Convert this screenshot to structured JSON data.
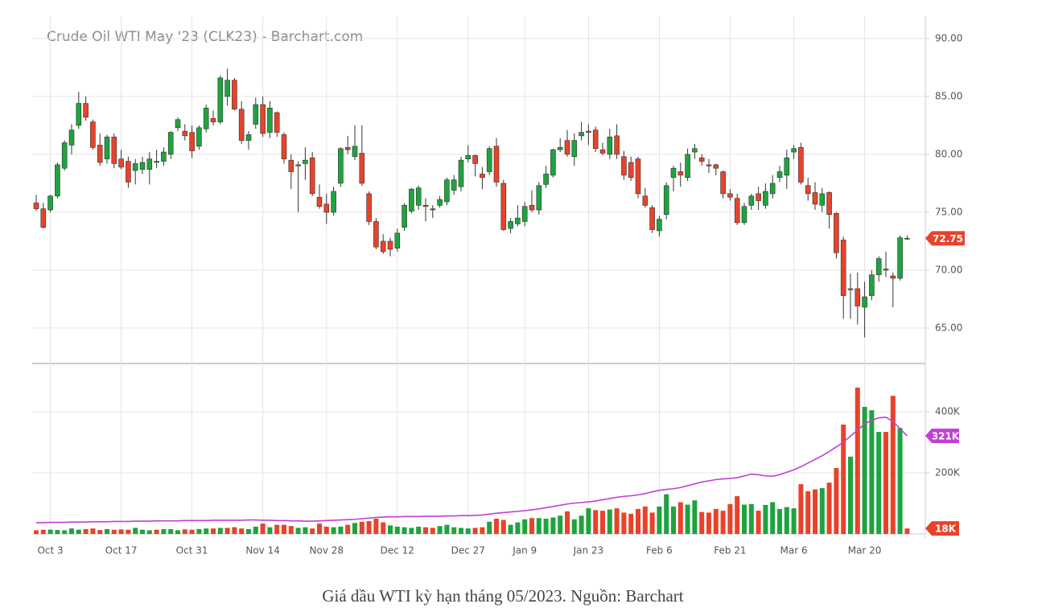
{
  "chart_data": [
    {
      "type": "candlestick",
      "title": "Crude Oil WTI May '23 (CLK23) - Barchart.com",
      "categories": [
        null,
        null,
        "Oct 3",
        null,
        null,
        null,
        null,
        null,
        null,
        null,
        null,
        null,
        "Oct 17",
        null,
        null,
        null,
        null,
        null,
        null,
        null,
        null,
        null,
        "Oct 31",
        null,
        null,
        null,
        null,
        null,
        null,
        null,
        null,
        null,
        "Nov 14",
        null,
        null,
        null,
        null,
        null,
        null,
        null,
        null,
        "Nov 28",
        null,
        null,
        null,
        null,
        null,
        null,
        null,
        null,
        null,
        "Dec 12",
        null,
        null,
        null,
        null,
        null,
        null,
        null,
        null,
        null,
        "Dec 27",
        null,
        null,
        null,
        null,
        null,
        null,
        null,
        "Jan 9",
        null,
        null,
        null,
        null,
        null,
        null,
        null,
        null,
        "Jan 23",
        null,
        null,
        null,
        null,
        null,
        null,
        null,
        null,
        null,
        "Feb 6",
        null,
        null,
        null,
        null,
        null,
        null,
        null,
        null,
        null,
        "Feb 21",
        null,
        null,
        null,
        null,
        null,
        null,
        null,
        null,
        "Mar 6",
        null,
        null,
        null,
        null,
        null,
        null,
        null,
        null,
        null,
        "Mar 20",
        null,
        null,
        null,
        null,
        null,
        null
      ],
      "open": [
        75.8,
        75.3,
        75.2,
        76.4,
        78.8,
        80.8,
        82.5,
        84.4,
        82.8,
        80.8,
        79.6,
        81.5,
        79.6,
        79.4,
        78.6,
        78.7,
        78.7,
        79.3,
        79.4,
        80.0,
        82.3,
        82.0,
        81.9,
        80.7,
        82.2,
        83.1,
        82.8,
        85.0,
        86.4,
        83.9,
        81.2,
        82.6,
        84.3,
        81.9,
        83.6,
        81.7,
        79.5,
        79.1,
        79.2,
        79.7,
        76.3,
        75.7,
        75.0,
        77.5,
        80.6,
        79.8,
        80.1,
        76.6,
        74.2,
        72.5,
        72.5,
        71.9,
        73.7,
        75.1,
        75.6,
        75.6,
        75.3,
        75.6,
        75.9,
        76.9,
        77.2,
        79.6,
        79.9,
        78.3,
        78.5,
        80.7,
        77.5,
        73.6,
        74.0,
        74.2,
        75.6,
        75.2,
        77.4,
        78.2,
        80.4,
        81.2,
        79.8,
        81.6,
        82.0,
        82.1,
        80.4,
        80.0,
        81.6,
        79.8,
        79.3,
        79.6,
        76.4,
        75.4,
        73.4,
        74.8,
        78.0,
        78.5,
        78.0,
        80.2,
        79.7,
        79.1,
        79.1,
        78.5,
        76.6,
        76.2,
        74.1,
        75.6,
        76.6,
        75.6,
        76.6,
        78.0,
        78.2,
        80.2,
        80.6,
        77.3,
        76.7,
        75.6,
        76.7,
        74.9,
        72.6,
        68.4,
        68.4,
        66.8,
        67.8,
        69.6,
        70.0,
        69.5,
        69.3,
        72.7
      ],
      "high": [
        76.5,
        75.8,
        76.5,
        79.3,
        81.2,
        82.6,
        85.4,
        85.0,
        83.0,
        81.8,
        81.7,
        81.8,
        80.4,
        79.8,
        79.6,
        79.8,
        80.2,
        80.4,
        80.6,
        82.0,
        83.2,
        82.6,
        82.5,
        82.5,
        84.3,
        83.8,
        86.8,
        87.4,
        86.6,
        84.6,
        82.0,
        84.9,
        85.0,
        84.6,
        83.7,
        81.9,
        80.0,
        79.4,
        80.6,
        80.2,
        77.4,
        76.6,
        77.2,
        80.6,
        81.6,
        82.5,
        82.5,
        76.8,
        74.5,
        73.1,
        72.8,
        73.6,
        75.8,
        77.1,
        77.3,
        76.2,
        75.6,
        76.4,
        78.0,
        78.2,
        79.8,
        80.8,
        80.0,
        78.9,
        80.7,
        81.4,
        77.8,
        74.5,
        75.6,
        75.9,
        76.9,
        77.6,
        79.0,
        80.5,
        81.4,
        82.1,
        81.8,
        82.8,
        82.6,
        82.4,
        81.0,
        82.2,
        82.6,
        80.3,
        79.8,
        79.8,
        77.1,
        75.6,
        74.7,
        77.6,
        79.0,
        79.3,
        80.5,
        80.9,
        80.0,
        79.6,
        79.2,
        78.6,
        77.0,
        76.6,
        75.8,
        76.6,
        77.2,
        77.5,
        78.2,
        79.0,
        80.4,
        80.8,
        81.0,
        78.0,
        77.6,
        77.1,
        76.8,
        75.0,
        72.9,
        69.7,
        69.8,
        69.0,
        70.0,
        71.2,
        71.6,
        69.8,
        73.0,
        73.0
      ],
      "low": [
        75.1,
        73.6,
        75.0,
        76.2,
        78.6,
        80.0,
        82.2,
        82.9,
        80.4,
        79.0,
        79.2,
        78.8,
        78.7,
        77.1,
        77.4,
        78.3,
        77.4,
        78.8,
        79.0,
        79.6,
        82.0,
        81.2,
        79.7,
        80.4,
        81.9,
        82.5,
        82.6,
        84.2,
        83.8,
        80.9,
        80.4,
        82.2,
        81.5,
        81.4,
        81.5,
        79.2,
        77.0,
        75.0,
        77.8,
        76.4,
        75.3,
        74.0,
        74.7,
        77.2,
        80.0,
        79.5,
        77.3,
        73.9,
        71.8,
        71.4,
        71.2,
        71.6,
        73.4,
        74.9,
        75.2,
        74.2,
        74.5,
        75.4,
        75.6,
        76.5,
        76.8,
        79.3,
        78.1,
        77.0,
        78.2,
        77.2,
        73.4,
        73.2,
        73.8,
        73.8,
        75.0,
        74.8,
        77.1,
        78.0,
        80.2,
        79.8,
        79.0,
        81.2,
        80.8,
        80.2,
        79.9,
        79.6,
        79.6,
        77.8,
        77.7,
        76.2,
        75.4,
        73.2,
        72.9,
        74.4,
        76.8,
        77.2,
        77.7,
        79.6,
        79.0,
        78.4,
        78.2,
        76.2,
        76.0,
        73.9,
        73.9,
        75.2,
        75.2,
        75.3,
        76.2,
        77.6,
        77.0,
        79.6,
        77.4,
        76.0,
        75.2,
        75.0,
        73.6,
        71.0,
        65.8,
        65.8,
        65.3,
        64.2,
        67.4,
        69.0,
        69.4,
        66.8,
        69.1,
        72.6
      ],
      "close": [
        75.3,
        73.7,
        76.4,
        79.1,
        81.0,
        82.1,
        84.4,
        83.2,
        80.6,
        79.3,
        81.5,
        79.2,
        78.9,
        77.6,
        79.2,
        79.3,
        79.6,
        79.4,
        80.2,
        81.9,
        83.0,
        81.6,
        80.3,
        82.3,
        84.0,
        82.8,
        86.6,
        86.4,
        83.9,
        81.2,
        81.7,
        84.3,
        81.8,
        84.0,
        81.9,
        79.6,
        78.5,
        79.0,
        79.5,
        76.6,
        75.5,
        75.0,
        76.8,
        80.5,
        80.4,
        80.7,
        77.5,
        74.2,
        72.0,
        71.6,
        71.8,
        73.2,
        75.6,
        77.0,
        77.1,
        75.5,
        75.2,
        76.1,
        77.8,
        77.8,
        79.5,
        79.9,
        79.2,
        78.0,
        80.5,
        77.6,
        73.5,
        74.2,
        74.5,
        75.5,
        75.2,
        77.3,
        78.3,
        80.4,
        80.6,
        80.0,
        81.2,
        81.9,
        81.9,
        80.5,
        80.1,
        81.5,
        80.0,
        78.2,
        78.0,
        76.6,
        75.6,
        73.5,
        74.4,
        77.3,
        78.8,
        78.2,
        80.0,
        80.5,
        79.4,
        79.0,
        78.8,
        76.6,
        76.3,
        74.1,
        75.5,
        76.4,
        76.0,
        76.8,
        77.5,
        78.5,
        79.7,
        80.5,
        77.6,
        76.6,
        75.7,
        76.6,
        74.8,
        71.5,
        67.8,
        68.3,
        66.9,
        67.7,
        69.6,
        71.0,
        70.1,
        69.3,
        72.8,
        72.75
      ],
      "up_color": "#1fa33f",
      "down_color": "#e8432a",
      "ylim": [
        61.94,
        91.94
      ],
      "yticks": [
        {
          "value": 65,
          "label": "65.00"
        },
        {
          "value": 70,
          "label": "70.00"
        },
        {
          "value": 75,
          "label": "75.00"
        },
        {
          "value": 80,
          "label": "80.00"
        },
        {
          "value": 85,
          "label": "85.00"
        },
        {
          "value": 90,
          "label": "90.00"
        }
      ],
      "grid": true,
      "tag_color": "#e8432a"
    },
    {
      "type": "bar",
      "up_color": "#1fa33f",
      "down_color": "#e8432a",
      "series": [
        {
          "color": "#e8432a",
          "values": [
            12000,
            14000,
            14000,
            13000,
            12000,
            18000,
            14000,
            16000,
            18000,
            13000,
            16000,
            14000,
            15000,
            14000,
            20000,
            14000,
            12000,
            14000,
            16000,
            16000,
            12000,
            15000,
            14000,
            16000,
            18000,
            18000,
            20000,
            20000,
            22000,
            18000,
            16000,
            24000,
            34000,
            22000,
            30000,
            30000,
            26000,
            20000,
            22000,
            18000,
            34000,
            24000,
            22000,
            24000,
            30000,
            36000,
            40000,
            42000,
            50000,
            38000,
            28000,
            24000,
            22000,
            20000,
            24000,
            22000,
            20000,
            26000,
            30000,
            22000,
            20000,
            18000,
            20000,
            22000,
            40000,
            50000,
            46000,
            30000,
            38000,
            48000,
            52000,
            52000,
            50000,
            54000,
            60000,
            74000,
            48000,
            60000,
            84000,
            78000,
            76000,
            80000,
            84000,
            70000,
            66000,
            82000,
            90000,
            70000,
            90000,
            130000,
            90000,
            104000,
            96000,
            110000,
            72000,
            70000,
            82000,
            76000,
            98000,
            124000,
            96000,
            98000,
            76000,
            95000,
            104000,
            82000,
            88000,
            84000,
            163000,
            140000,
            146000,
            150000,
            168000,
            216000,
            358000,
            253000,
            479000,
            416000,
            405000,
            334000,
            334000,
            452000,
            347000,
            18000
          ],
          "value_labels": [
            null,
            null,
            null,
            null,
            null,
            null,
            null,
            null,
            null,
            null,
            null,
            null,
            null,
            null,
            null,
            null,
            null,
            null,
            null,
            null,
            null,
            null,
            null,
            null,
            null,
            null,
            null,
            null,
            null,
            null,
            null,
            null,
            null,
            null,
            null,
            null,
            null,
            null,
            null,
            null,
            null,
            null,
            null,
            null,
            null,
            null,
            null,
            null,
            null,
            null,
            null,
            null,
            null,
            null,
            null,
            null,
            null,
            null,
            null,
            null,
            null,
            null,
            null,
            null,
            null,
            null,
            null,
            null,
            null,
            null,
            null,
            null,
            null,
            null,
            null,
            null,
            null,
            null,
            null,
            null,
            null,
            null,
            null,
            null,
            null,
            null,
            null,
            null,
            null,
            null,
            null,
            null,
            null,
            null,
            null,
            null,
            null,
            null,
            null,
            null,
            null,
            null,
            null,
            null,
            null,
            null,
            null,
            null,
            null,
            null,
            null,
            null,
            null,
            null,
            null,
            null,
            null,
            null,
            null,
            null,
            null,
            null,
            null,
            "18K"
          ]
        },
        {
          "color": "#c23fd6",
          "type": "line",
          "values": [
            37000,
            37000,
            38000,
            38000,
            38000,
            39000,
            39000,
            39000,
            40000,
            40000,
            40000,
            41000,
            41000,
            41000,
            42000,
            42000,
            42000,
            43000,
            43000,
            43000,
            43000,
            44000,
            44000,
            44000,
            44000,
            45000,
            45000,
            45000,
            45000,
            45000,
            46000,
            46000,
            45000,
            45000,
            44000,
            44000,
            43000,
            43000,
            42000,
            42000,
            43000,
            44000,
            45000,
            46000,
            47000,
            48000,
            50000,
            52000,
            54000,
            55000,
            56000,
            56000,
            57000,
            57000,
            57000,
            58000,
            58000,
            58000,
            59000,
            59000,
            60000,
            60000,
            61000,
            62000,
            65000,
            68000,
            70000,
            72000,
            74000,
            76000,
            79000,
            82000,
            86000,
            90000,
            94000,
            98000,
            101000,
            103000,
            105000,
            108000,
            112000,
            116000,
            120000,
            123000,
            125000,
            128000,
            132000,
            138000,
            143000,
            146000,
            148000,
            152000,
            158000,
            164000,
            170000,
            174000,
            178000,
            180000,
            182000,
            184000,
            190000,
            196000,
            194000,
            190000,
            189000,
            194000,
            202000,
            210000,
            220000,
            232000,
            244000,
            256000,
            270000,
            285000,
            300000,
            320000,
            340000,
            360000,
            372000,
            380000,
            382000,
            368000,
            345000,
            321000
          ],
          "value_labels": [
            null,
            null,
            null,
            null,
            null,
            null,
            null,
            null,
            null,
            null,
            null,
            null,
            null,
            null,
            null,
            null,
            null,
            null,
            null,
            null,
            null,
            null,
            null,
            null,
            null,
            null,
            null,
            null,
            null,
            null,
            null,
            null,
            null,
            null,
            null,
            null,
            null,
            null,
            null,
            null,
            null,
            null,
            null,
            null,
            null,
            null,
            null,
            null,
            null,
            null,
            null,
            null,
            null,
            null,
            null,
            null,
            null,
            null,
            null,
            null,
            null,
            null,
            null,
            null,
            null,
            null,
            null,
            null,
            null,
            null,
            null,
            null,
            null,
            null,
            null,
            null,
            null,
            null,
            null,
            null,
            null,
            null,
            null,
            null,
            null,
            null,
            null,
            null,
            null,
            null,
            null,
            null,
            null,
            null,
            null,
            null,
            null,
            null,
            null,
            null,
            null,
            null,
            null,
            null,
            null,
            null,
            null,
            null,
            null,
            null,
            null,
            null,
            null,
            null,
            null,
            null,
            null,
            null,
            null,
            null,
            null,
            null,
            null,
            "321K"
          ]
        }
      ],
      "ylim": [
        0,
        550000
      ],
      "yticks": [
        {
          "value": 200000,
          "label": "200K"
        },
        {
          "value": 400000,
          "label": "400K"
        }
      ],
      "grid": true
    }
  ],
  "caption": "Giá dầu WTI kỳ hạn tháng 05/2023. Nguồn: Barchart"
}
